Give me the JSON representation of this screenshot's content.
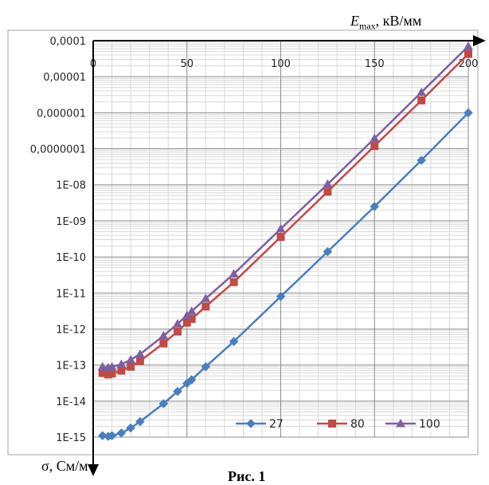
{
  "chart_data": {
    "type": "line",
    "title": "",
    "xlabel_main": "E",
    "xlabel_sub": "max",
    "xlabel_unit": ", кВ/мм",
    "ylabel": "σ, См/м",
    "caption": "Рис. 1",
    "xlim": [
      0,
      200
    ],
    "ylim_exp": [
      -15,
      -4
    ],
    "y_scale": "log",
    "grid": true,
    "legend_position": "bottom-right",
    "x_ticks": [
      {
        "value": 0,
        "label": "0"
      },
      {
        "value": 50,
        "label": "50"
      },
      {
        "value": 100,
        "label": "100"
      },
      {
        "value": 150,
        "label": "150"
      },
      {
        "value": 200,
        "label": "200"
      }
    ],
    "y_ticks": [
      {
        "exp": -4,
        "label": "0,0001"
      },
      {
        "exp": -5,
        "label": "0,00001"
      },
      {
        "exp": -6,
        "label": "0,000001"
      },
      {
        "exp": -7,
        "label": "0,0000001"
      },
      {
        "exp": -8,
        "label": "1E-08"
      },
      {
        "exp": -9,
        "label": "1E-09"
      },
      {
        "exp": -10,
        "label": "1E-10"
      },
      {
        "exp": -11,
        "label": "1E-11"
      },
      {
        "exp": -12,
        "label": "1E-12"
      },
      {
        "exp": -13,
        "label": "1E-13"
      },
      {
        "exp": -14,
        "label": "1E-14"
      },
      {
        "exp": -15,
        "label": "1E-15"
      }
    ],
    "series": [
      {
        "name": "27",
        "color": "#4a7ebb",
        "marker": "diamond",
        "x": [
          5,
          8,
          10,
          15,
          20,
          25,
          37.5,
          45,
          50,
          52.5,
          60,
          75,
          100,
          125,
          150,
          175,
          200
        ],
        "y": [
          1.1e-15,
          1.05e-15,
          1.1e-15,
          1.3e-15,
          1.8e-15,
          2.7e-15,
          8.5e-15,
          1.85e-14,
          3.1e-14,
          3.9e-14,
          9e-14,
          4.5e-13,
          8e-12,
          1.4e-10,
          2.5e-09,
          4.8e-08,
          1e-06
        ]
      },
      {
        "name": "80",
        "color": "#be4b48",
        "marker": "square",
        "x": [
          5,
          8,
          10,
          15,
          20,
          25,
          37.5,
          45,
          50,
          52.5,
          60,
          75,
          100,
          125,
          150,
          175,
          200
        ],
        "y": [
          6e-14,
          5.5e-14,
          5.8e-14,
          7e-14,
          9e-14,
          1.3e-13,
          4e-13,
          8.5e-13,
          1.5e-12,
          1.9e-12,
          4.2e-12,
          2e-11,
          3.6e-10,
          6.5e-09,
          1.2e-07,
          2.2e-06,
          4.3e-05
        ]
      },
      {
        "name": "100",
        "color": "#7d60a0",
        "marker": "triangle",
        "x": [
          5,
          8,
          10,
          15,
          20,
          25,
          37.5,
          45,
          50,
          52.5,
          60,
          75,
          100,
          125,
          150,
          175,
          200
        ],
        "y": [
          9e-14,
          8.5e-14,
          9e-14,
          1.05e-13,
          1.4e-13,
          2e-13,
          6.5e-13,
          1.4e-12,
          2.4e-12,
          3.1e-12,
          7e-12,
          3.4e-11,
          6e-10,
          1.05e-08,
          1.95e-07,
          3.7e-06,
          7e-05
        ]
      }
    ]
  }
}
